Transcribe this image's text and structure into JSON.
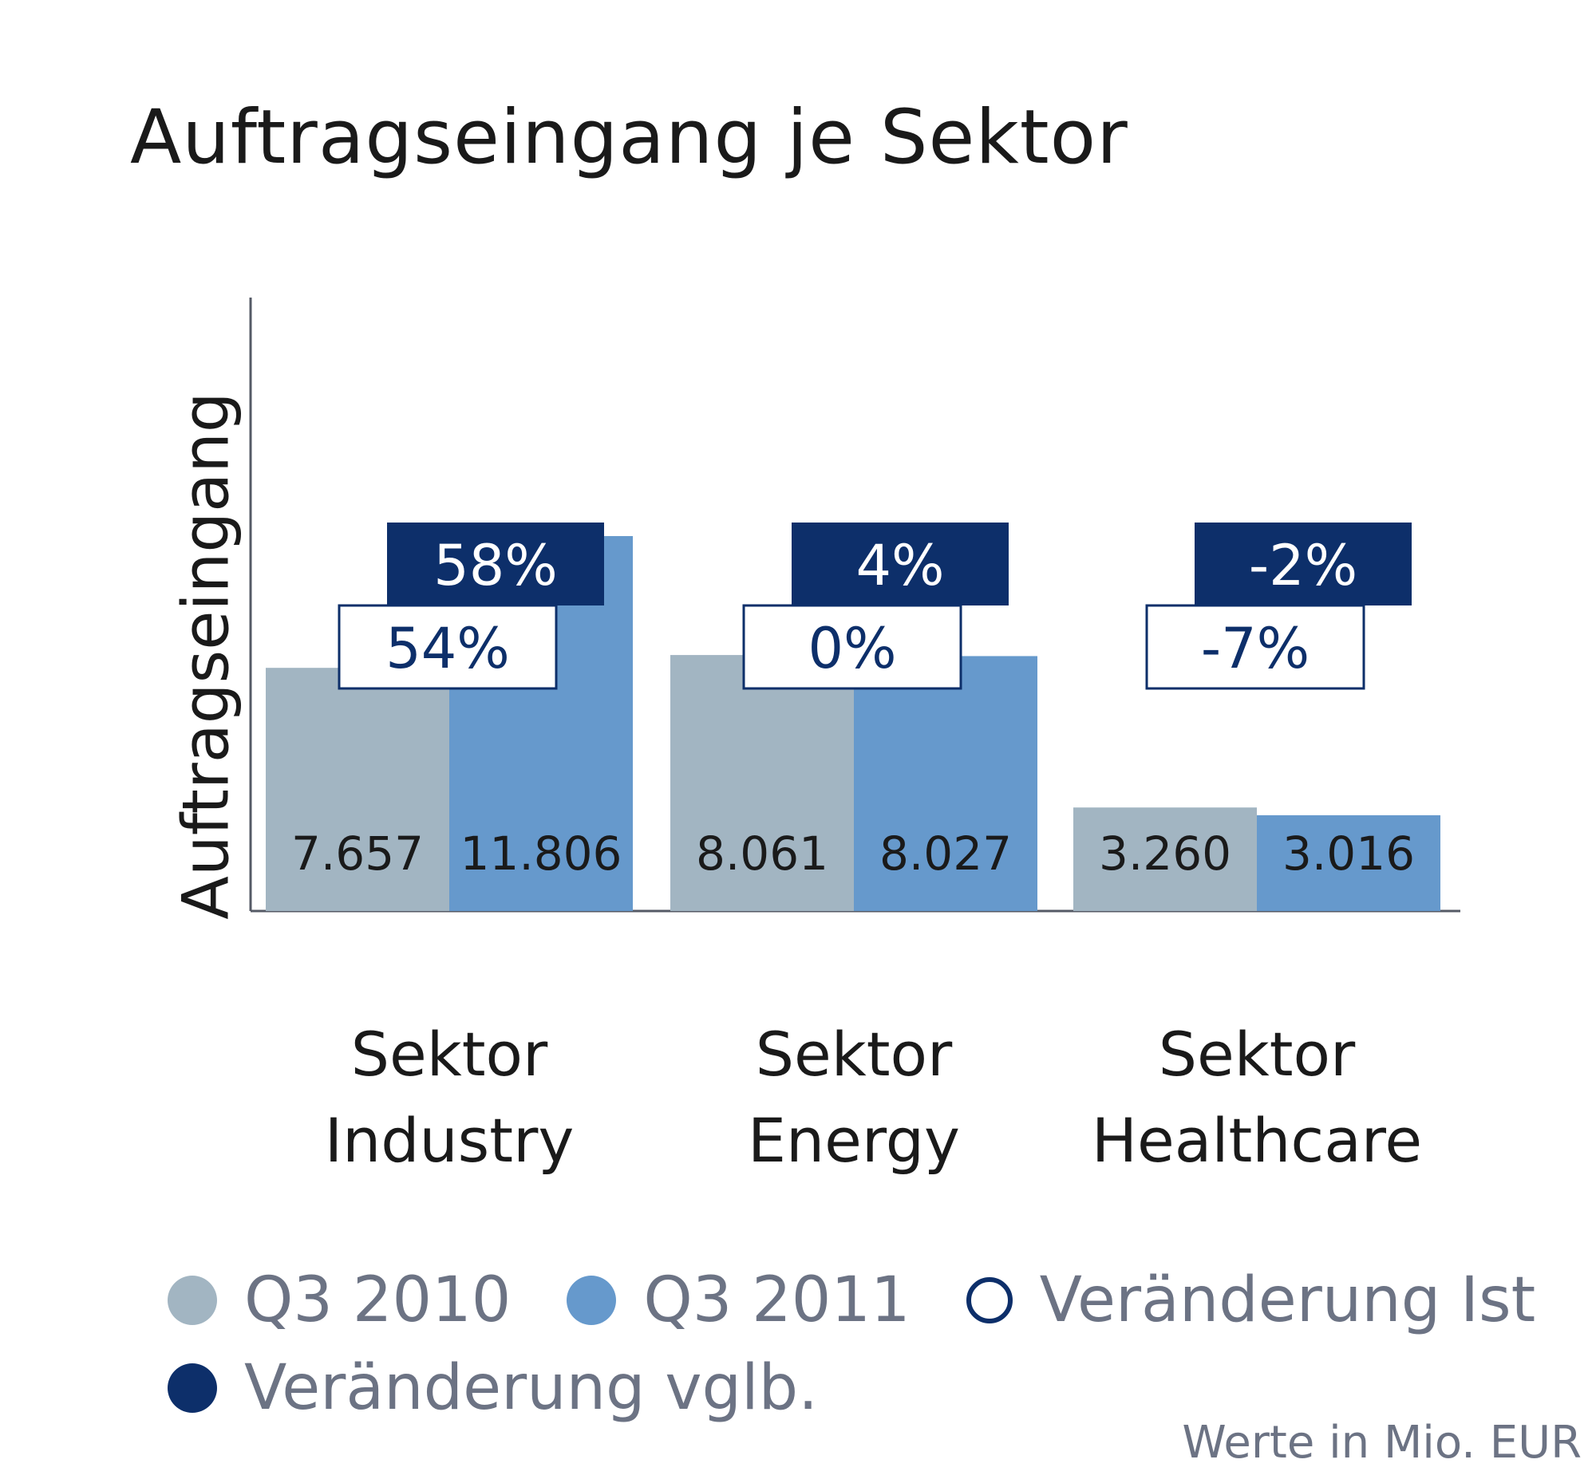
{
  "chart_data": {
    "type": "bar",
    "title": "Auftragseingang je Sektor",
    "ylabel": "Auftragseingang",
    "xlabel": "",
    "unit_note": "Werte in Mio. EUR",
    "categories": [
      [
        "Sektor",
        "Industry"
      ],
      [
        "Sektor",
        "Energy"
      ],
      [
        "Sektor",
        "Healthcare"
      ]
    ],
    "series": [
      {
        "name": "Q3 2010",
        "color": "#a2b5c2",
        "values": [
          7657,
          8061,
          3260
        ],
        "labels": [
          "7.657",
          "8.061",
          "3.260"
        ]
      },
      {
        "name": "Q3 2011",
        "color": "#6699cc",
        "values": [
          11806,
          8027,
          3016
        ],
        "labels": [
          "11.806",
          "8.027",
          "3.016"
        ]
      }
    ],
    "annotations": {
      "veraenderung_vglb": {
        "name": "Veränderung vglb.",
        "color": "#0d2f6a",
        "labels": [
          "58%",
          "4%",
          "-2%"
        ]
      },
      "veraenderung_ist": {
        "name": "Veränderung Ist",
        "color": "#0d2f6a",
        "labels": [
          "54%",
          "0%",
          "-7%"
        ]
      }
    },
    "ylim": [
      0,
      14800
    ],
    "grid": false,
    "legend_position": "bottom"
  }
}
